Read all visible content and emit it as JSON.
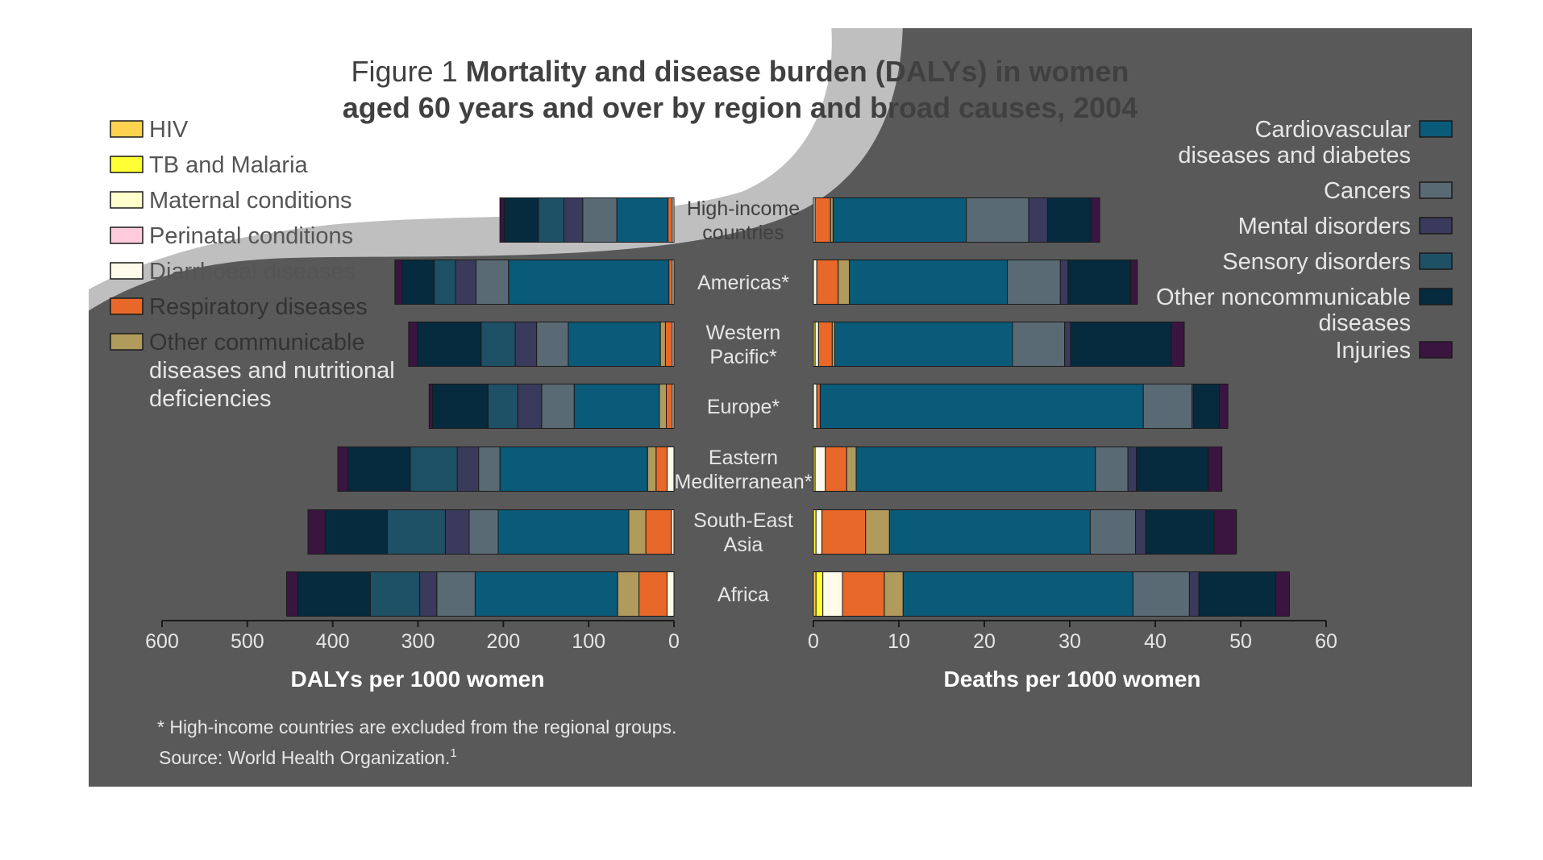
{
  "title_prefix": "Figure 1",
  "title_line1": "Mortality and disease burden (DALYs) in women",
  "title_line2": "aged 60 years and over by region and broad causes, 2004",
  "footnote": "* High-income countries are excluded from the regional groups.",
  "source": "Source: World Health Organization.",
  "source_sup": "1",
  "legend_left": [
    {
      "label": "HIV",
      "color": "#ffd34f"
    },
    {
      "label": "TB and Malaria",
      "color": "#ffff33"
    },
    {
      "label": "Maternal conditions",
      "color": "#ffffcc"
    },
    {
      "label": "Perinatal conditions",
      "color": "#ffccdd"
    },
    {
      "label": "Diarrhoeal diseases",
      "color": "#fffbea"
    },
    {
      "label": "Respiratory diseases",
      "color": "#e8682a"
    },
    {
      "label": [
        "Other communicable",
        "diseases and nutritional",
        "deficiencies"
      ],
      "color": "#b09a5c"
    }
  ],
  "legend_right": [
    {
      "label": [
        "Cardiovascular",
        "diseases and diabetes"
      ],
      "color": "#0a5a7a"
    },
    {
      "label": [
        "Cancers"
      ],
      "color": "#5a6a74"
    },
    {
      "label": [
        "Mental disorders"
      ],
      "color": "#3a3a5c"
    },
    {
      "label": [
        "Sensory disorders"
      ],
      "color": "#1e5066"
    },
    {
      "label": [
        "Other noncommunicable",
        "diseases"
      ],
      "color": "#062a3e"
    },
    {
      "label": [
        "Injuries"
      ],
      "color": "#3a1540"
    }
  ],
  "chart_data": [
    {
      "type": "bar",
      "orientation": "horizontal",
      "stacked": true,
      "direction": "right-to-left",
      "xlabel": "DALYs per 1000 women",
      "xlim": [
        0,
        600
      ],
      "xticks": [
        0,
        100,
        200,
        300,
        400,
        500,
        600
      ],
      "categories": [
        "High-income countries",
        "Americas*",
        "Western Pacific*",
        "Europe*",
        "Eastern Mediterranean*",
        "South-East Asia",
        "Africa"
      ],
      "series": [
        {
          "name": "HIV",
          "values": [
            0,
            0,
            0,
            0,
            0,
            0,
            0
          ]
        },
        {
          "name": "TB and Malaria",
          "values": [
            0,
            0,
            0,
            0,
            0,
            0,
            0
          ]
        },
        {
          "name": "Maternal conditions",
          "values": [
            0,
            0,
            0,
            0,
            0,
            0,
            0
          ]
        },
        {
          "name": "Perinatal conditions",
          "values": [
            0,
            0,
            0,
            0,
            0,
            0,
            0
          ]
        },
        {
          "name": "Diarrhoeal diseases",
          "values": [
            2,
            2,
            2,
            2,
            8,
            3,
            8
          ]
        },
        {
          "name": "Respiratory diseases",
          "values": [
            5,
            4,
            8,
            7,
            13,
            30,
            33
          ]
        },
        {
          "name": "Other communicable diseases and nutritional deficiencies",
          "values": [
            0,
            0,
            6,
            8,
            10,
            20,
            25
          ]
        },
        {
          "name": "Cardiovascular diseases and diabetes",
          "values": [
            60,
            188,
            108,
            100,
            173,
            153,
            167
          ]
        },
        {
          "name": "Cancers",
          "values": [
            40,
            38,
            37,
            38,
            25,
            34,
            45
          ]
        },
        {
          "name": "Mental disorders",
          "values": [
            22,
            24,
            25,
            28,
            25,
            28,
            20
          ]
        },
        {
          "name": "Sensory disorders",
          "values": [
            30,
            25,
            40,
            35,
            55,
            68,
            58
          ]
        },
        {
          "name": "Other noncommunicable diseases",
          "values": [
            40,
            38,
            75,
            65,
            73,
            73,
            85
          ]
        },
        {
          "name": "Injuries",
          "values": [
            5,
            8,
            10,
            4,
            12,
            20,
            13
          ]
        }
      ]
    },
    {
      "type": "bar",
      "orientation": "horizontal",
      "stacked": true,
      "direction": "left-to-right",
      "xlabel": "Deaths per 1000 women",
      "xlim": [
        0,
        60
      ],
      "xticks": [
        0,
        10,
        20,
        30,
        40,
        50,
        60
      ],
      "categories": [
        "High-income countries",
        "Americas*",
        "Western Pacific*",
        "Europe*",
        "Eastern Mediterranean*",
        "South-East Asia",
        "Africa"
      ],
      "series": [
        {
          "name": "HIV",
          "values": [
            0,
            0,
            0,
            0,
            0,
            0,
            0.3
          ]
        },
        {
          "name": "TB and Malaria",
          "values": [
            0,
            0,
            0.2,
            0,
            0.2,
            0.3,
            0.8
          ]
        },
        {
          "name": "Maternal conditions",
          "values": [
            0,
            0,
            0,
            0,
            0,
            0,
            0
          ]
        },
        {
          "name": "Perinatal conditions",
          "values": [
            0,
            0,
            0,
            0,
            0,
            0,
            0
          ]
        },
        {
          "name": "Diarrhoeal diseases",
          "values": [
            0.2,
            0.4,
            0.4,
            0.4,
            1.2,
            0.7,
            2.3
          ]
        },
        {
          "name": "Respiratory diseases",
          "values": [
            1.8,
            2.5,
            1.6,
            0.4,
            2.5,
            5.1,
            4.9
          ]
        },
        {
          "name": "Other communicable diseases and nutritional deficiencies",
          "values": [
            0.3,
            1.3,
            0.3,
            0,
            1.1,
            2.8,
            2.2
          ]
        },
        {
          "name": "Cardiovascular diseases and diabetes",
          "values": [
            15.6,
            18.5,
            20.8,
            37.8,
            28.0,
            23.5,
            26.9
          ]
        },
        {
          "name": "Cancers",
          "values": [
            7.3,
            6.2,
            6.1,
            5.7,
            3.8,
            5.3,
            6.6
          ]
        },
        {
          "name": "Mental disorders",
          "values": [
            2.2,
            0.9,
            0.7,
            0.2,
            1.0,
            1.2,
            1.1
          ]
        },
        {
          "name": "Sensory disorders",
          "values": [
            0,
            0,
            0,
            0,
            0,
            0,
            0
          ]
        },
        {
          "name": "Other noncommunicable diseases",
          "values": [
            5.1,
            7.3,
            11.8,
            3.0,
            8.4,
            8.0,
            9.0
          ]
        },
        {
          "name": "Injuries",
          "values": [
            1.0,
            0.8,
            1.5,
            1.0,
            1.6,
            2.6,
            1.6
          ]
        }
      ]
    }
  ]
}
